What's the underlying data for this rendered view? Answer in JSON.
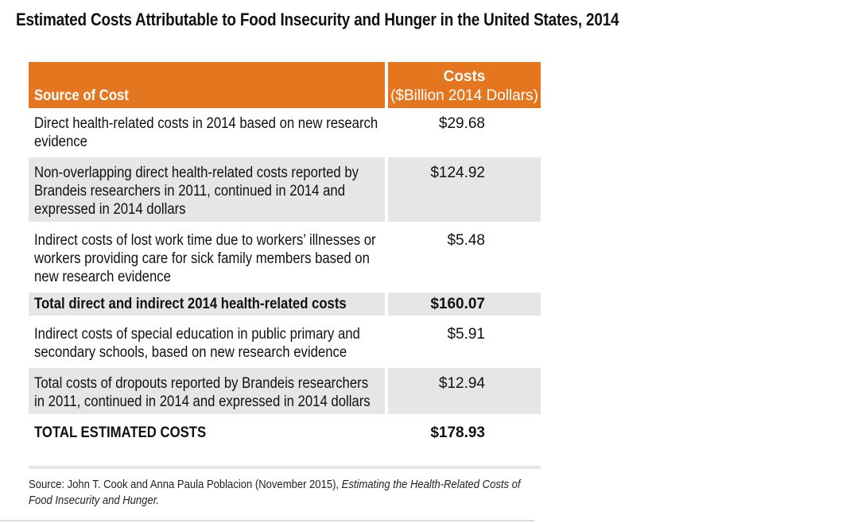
{
  "title": "Estimated Costs Attributable to Food Insecurity and Hunger in the United States, 2014",
  "table": {
    "header_source": "Source of Cost",
    "header_costs_line1": "Costs",
    "header_costs_line2": "($Billion 2014 Dollars)",
    "rows": [
      {
        "source": "Direct health-related costs in 2014 based on new research evidence",
        "cost": "$29.68"
      },
      {
        "source": "Non-overlapping direct health-related costs reported by Brandeis researchers in 2011, continued in 2014 and expressed in 2014 dollars",
        "cost": "$124.92"
      },
      {
        "source": "Indirect costs of lost work time due to workers’ illnesses or workers providing care for sick family members based on new research evidence",
        "cost": "$5.48"
      },
      {
        "source": "Total direct and indirect 2014 health-related costs",
        "cost": "$160.07"
      },
      {
        "source": "Indirect costs of special education in public primary and secondary schools, based on new research evidence",
        "cost": "$5.91"
      },
      {
        "source": "Total costs of dropouts reported by Brandeis researchers in 2011, continued in 2014 and expressed in 2014 dollars",
        "cost": "$12.94"
      },
      {
        "source": "TOTAL ESTIMATED COSTS",
        "cost": "$178.93"
      }
    ]
  },
  "footnote": {
    "prefix": "Source: John T. Cook and Anna Paula Poblacion (November 2015), ",
    "publication": "Estimating the Health-Related Costs of Food Insecurity and Hunger."
  },
  "colors": {
    "header_orange": "#e4761f",
    "row_shade": "#e6e6e6"
  }
}
